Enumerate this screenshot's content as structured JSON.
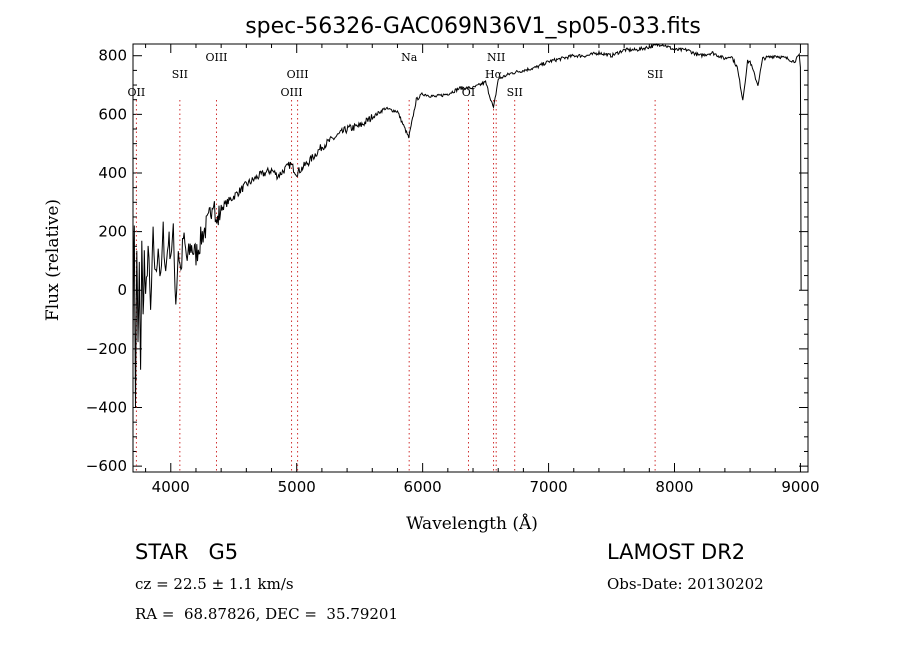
{
  "chart_data": {
    "type": "line",
    "title": "spec-56326-GAC069N36V1_sp05-033.fits",
    "xlabel": "Wavelength (Å)",
    "ylabel": "Flux (relative)",
    "xlim": [
      3700,
      9060
    ],
    "ylim": [
      -620,
      840
    ],
    "x_ticks": [
      4000,
      5000,
      6000,
      7000,
      8000,
      9000
    ],
    "y_ticks": [
      -600,
      -400,
      -200,
      0,
      200,
      400,
      600,
      800
    ],
    "x_tick_labels": [
      "4000",
      "5000",
      "6000",
      "7000",
      "8000",
      "9000"
    ],
    "y_tick_labels": [
      "−600",
      "−400",
      "−200",
      "0",
      "200",
      "400",
      "600",
      "800"
    ],
    "grid": false,
    "line_color": "#000000",
    "line_marker_color": "#cc3333",
    "series": [
      {
        "x": [
          3700,
          3710,
          3720,
          3730,
          3740,
          3750,
          3760,
          3770,
          3780,
          3790,
          3800,
          3820,
          3840,
          3860,
          3880,
          3900,
          3920,
          3940,
          3960,
          3980,
          4000,
          4020,
          4040,
          4060,
          4080,
          4100,
          4130,
          4160,
          4200,
          4250,
          4300,
          4340,
          4360,
          4400,
          4450,
          4500,
          4600,
          4700,
          4800,
          4850,
          4900,
          4950,
          5000,
          5100,
          5200,
          5300,
          5400,
          5500,
          5600,
          5700,
          5800,
          5890,
          5950,
          6000,
          6100,
          6200,
          6300,
          6400,
          6500,
          6563,
          6600,
          6700,
          6800,
          6900,
          7000,
          7100,
          7200,
          7300,
          7400,
          7500,
          7600,
          7700,
          7800,
          7900,
          8000,
          8100,
          8200,
          8300,
          8400,
          8450,
          8498,
          8542,
          8580,
          8600,
          8662,
          8700,
          8800,
          8900,
          8950,
          8990,
          9000,
          9005
        ],
        "y": [
          -150,
          240,
          -420,
          150,
          -200,
          80,
          -300,
          180,
          -100,
          120,
          -50,
          150,
          -80,
          180,
          40,
          160,
          20,
          200,
          60,
          180,
          130,
          190,
          -40,
          140,
          60,
          180,
          100,
          150,
          120,
          190,
          230,
          330,
          220,
          280,
          300,
          320,
          360,
          390,
          410,
          390,
          410,
          430,
          400,
          440,
          490,
          520,
          550,
          560,
          590,
          620,
          610,
          520,
          650,
          670,
          660,
          670,
          690,
          690,
          710,
          620,
          720,
          740,
          750,
          760,
          780,
          790,
          800,
          800,
          810,
          800,
          820,
          820,
          830,
          840,
          820,
          820,
          800,
          810,
          790,
          800,
          760,
          650,
          780,
          780,
          700,
          790,
          800,
          790,
          780,
          800,
          760,
          0
        ]
      }
    ],
    "emission_lines": [
      {
        "label": "OII",
        "x": 3727,
        "dash_color": "#d03030"
      },
      {
        "label": "SII",
        "x": 4072,
        "dash_color": "#d03030"
      },
      {
        "label": "OIII",
        "x": 4363,
        "dash_color": "#d03030"
      },
      {
        "label": "OIII",
        "x": 4959,
        "dash_color": "#d03030"
      },
      {
        "label": "OIII",
        "x": 5007,
        "dash_color": "#d03030"
      },
      {
        "label": "Na",
        "x": 5893,
        "dash_color": "#d03030"
      },
      {
        "label": "OI",
        "x": 6364,
        "dash_color": "#d03030"
      },
      {
        "label": "Hα",
        "x": 6563,
        "dash_color": "#d03030"
      },
      {
        "label": "NII",
        "x": 6584,
        "dash_color": "#d03030"
      },
      {
        "label": "SII",
        "x": 6731,
        "dash_color": "#d03030"
      },
      {
        "label": "SII",
        "x": 7846,
        "dash_color": "#d03030"
      }
    ]
  },
  "info": {
    "class_label": "STAR   G5",
    "cz_label": "cz = 22.5 ± 1.1 km/s",
    "coords_label": "RA =  68.87826, DEC =  35.79201",
    "survey_label": "LAMOST DR2",
    "obs_date_label": "Obs-Date: 20130202"
  }
}
